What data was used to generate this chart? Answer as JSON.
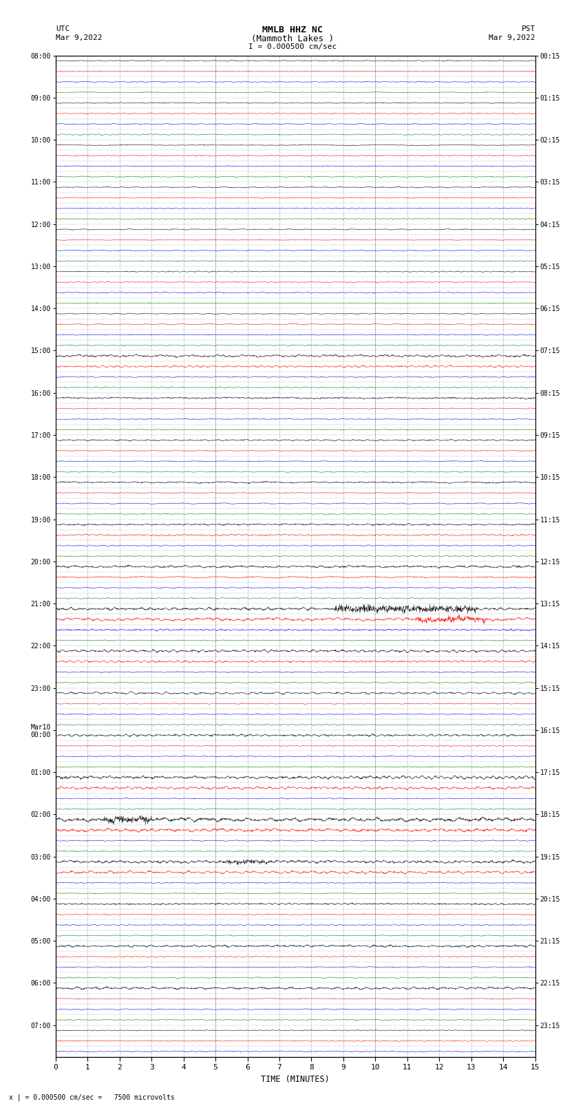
{
  "title_line1": "MMLB HHZ NC",
  "title_line2": "(Mammoth Lakes )",
  "scale_label": "I = 0.000500 cm/sec",
  "left_header_line1": "UTC",
  "left_header_line2": "Mar 9,2022",
  "right_header_line1": "PST",
  "right_header_line2": "Mar 9,2022",
  "bottom_note": "x | = 0.000500 cm/sec =   7500 microvolts",
  "xlabel": "TIME (MINUTES)",
  "left_times_utc": [
    "08:00",
    "",
    "",
    "",
    "09:00",
    "",
    "",
    "",
    "10:00",
    "",
    "",
    "",
    "11:00",
    "",
    "",
    "",
    "12:00",
    "",
    "",
    "",
    "13:00",
    "",
    "",
    "",
    "14:00",
    "",
    "",
    "",
    "15:00",
    "",
    "",
    "",
    "16:00",
    "",
    "",
    "",
    "17:00",
    "",
    "",
    "",
    "18:00",
    "",
    "",
    "",
    "19:00",
    "",
    "",
    "",
    "20:00",
    "",
    "",
    "",
    "21:00",
    "",
    "",
    "",
    "22:00",
    "",
    "",
    "",
    "23:00",
    "",
    "",
    "",
    "Mar10\n00:00",
    "",
    "",
    "",
    "01:00",
    "",
    "",
    "",
    "02:00",
    "",
    "",
    "",
    "03:00",
    "",
    "",
    "",
    "04:00",
    "",
    "",
    "",
    "05:00",
    "",
    "",
    "",
    "06:00",
    "",
    "",
    "",
    "07:00",
    "",
    ""
  ],
  "right_times_pst": [
    "00:15",
    "",
    "",
    "",
    "01:15",
    "",
    "",
    "",
    "02:15",
    "",
    "",
    "",
    "03:15",
    "",
    "",
    "",
    "04:15",
    "",
    "",
    "",
    "05:15",
    "",
    "",
    "",
    "06:15",
    "",
    "",
    "",
    "07:15",
    "",
    "",
    "",
    "08:15",
    "",
    "",
    "",
    "09:15",
    "",
    "",
    "",
    "10:15",
    "",
    "",
    "",
    "11:15",
    "",
    "",
    "",
    "12:15",
    "",
    "",
    "",
    "13:15",
    "",
    "",
    "",
    "14:15",
    "",
    "",
    "",
    "15:15",
    "",
    "",
    "",
    "16:15",
    "",
    "",
    "",
    "17:15",
    "",
    "",
    "",
    "18:15",
    "",
    "",
    "",
    "19:15",
    "",
    "",
    "",
    "20:15",
    "",
    "",
    "",
    "21:15",
    "",
    "",
    "",
    "22:15",
    "",
    "",
    "",
    "23:15",
    "",
    ""
  ],
  "num_rows": 95,
  "colors_cycle": [
    "black",
    "red",
    "blue",
    "green"
  ],
  "bg_color": "white",
  "grid_color": "#888888",
  "noise_amplitude_base": 0.035,
  "time_points": 1800,
  "x_ticks": [
    0,
    1,
    2,
    3,
    4,
    5,
    6,
    7,
    8,
    9,
    10,
    11,
    12,
    13,
    14,
    15
  ],
  "figsize": [
    8.5,
    16.13
  ],
  "dpi": 100
}
